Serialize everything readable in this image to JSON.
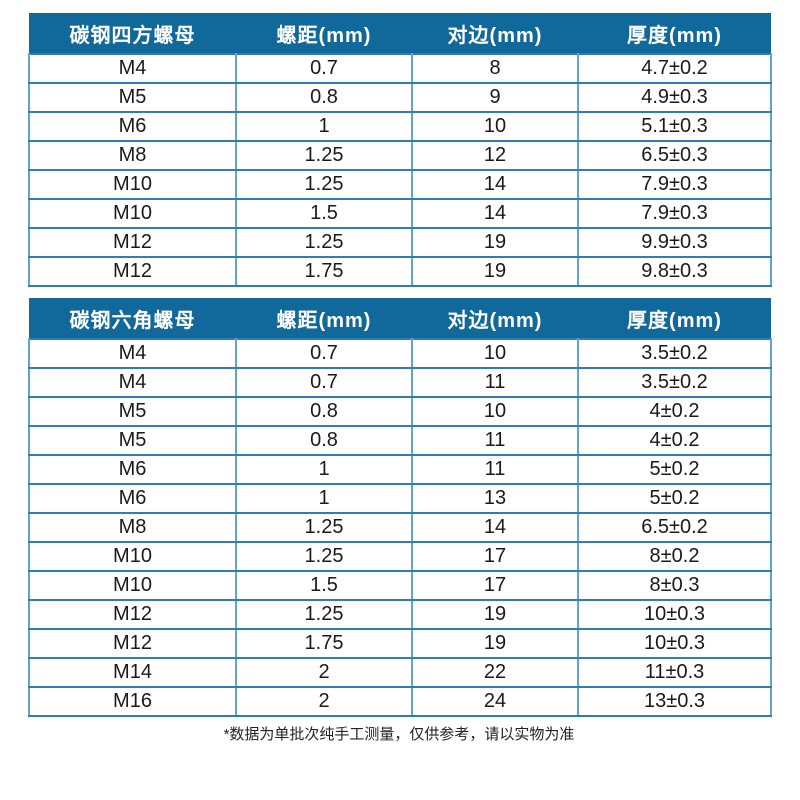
{
  "page": {
    "footnote": "*数据为单批次纯手工测量，仅供参考，请以实物为准"
  },
  "colors": {
    "header_bg": "#11689b",
    "header_text": "#ffffff",
    "row_line": "#2e7eb0",
    "col_line": "#5fa5cd",
    "cell_text": "#1a1a1a"
  },
  "tables": [
    {
      "name": "carbon-steel-square-nut",
      "columns": [
        "碳钢四方螺母",
        "螺距(mm)",
        "对边(mm)",
        "厚度(mm)"
      ],
      "rows": [
        [
          "M4",
          "0.7",
          "8",
          "4.7±0.2"
        ],
        [
          "M5",
          "0.8",
          "9",
          "4.9±0.3"
        ],
        [
          "M6",
          "1",
          "10",
          "5.1±0.3"
        ],
        [
          "M8",
          "1.25",
          "12",
          "6.5±0.3"
        ],
        [
          "M10",
          "1.25",
          "14",
          "7.9±0.3"
        ],
        [
          "M10",
          "1.5",
          "14",
          "7.9±0.3"
        ],
        [
          "M12",
          "1.25",
          "19",
          "9.9±0.3"
        ],
        [
          "M12",
          "1.75",
          "19",
          "9.8±0.3"
        ]
      ]
    },
    {
      "name": "carbon-steel-hex-nut",
      "columns": [
        "碳钢六角螺母",
        "螺距(mm)",
        "对边(mm)",
        "厚度(mm)"
      ],
      "rows": [
        [
          "M4",
          "0.7",
          "10",
          "3.5±0.2"
        ],
        [
          "M4",
          "0.7",
          "11",
          "3.5±0.2"
        ],
        [
          "M5",
          "0.8",
          "10",
          "4±0.2"
        ],
        [
          "M5",
          "0.8",
          "11",
          "4±0.2"
        ],
        [
          "M6",
          "1",
          "11",
          "5±0.2"
        ],
        [
          "M6",
          "1",
          "13",
          "5±0.2"
        ],
        [
          "M8",
          "1.25",
          "14",
          "6.5±0.2"
        ],
        [
          "M10",
          "1.25",
          "17",
          "8±0.2"
        ],
        [
          "M10",
          "1.5",
          "17",
          "8±0.3"
        ],
        [
          "M12",
          "1.25",
          "19",
          "10±0.3"
        ],
        [
          "M12",
          "1.75",
          "19",
          "10±0.3"
        ],
        [
          "M14",
          "2",
          "22",
          "11±0.3"
        ],
        [
          "M16",
          "2",
          "24",
          "13±0.3"
        ]
      ]
    }
  ]
}
